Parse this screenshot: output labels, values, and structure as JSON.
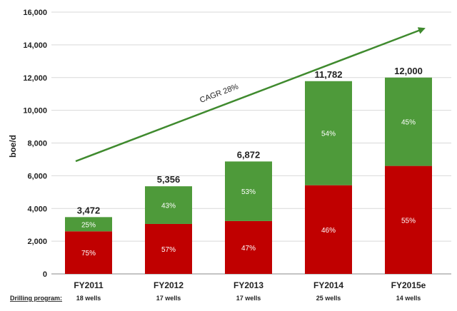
{
  "chart_data": {
    "type": "bar",
    "stacked": true,
    "ylabel": "boe/d",
    "ylim": [
      0,
      16000
    ],
    "yticks": [
      "0",
      "2,000",
      "4,000",
      "6,000",
      "8,000",
      "10,000",
      "12,000",
      "14,000",
      "16,000"
    ],
    "ytick_values": [
      0,
      2000,
      4000,
      6000,
      8000,
      10000,
      12000,
      14000,
      16000
    ],
    "grid": true,
    "categories": [
      "FY2011",
      "FY2012",
      "FY2013",
      "FY2014",
      "FY2015e"
    ],
    "totals": [
      3472,
      5356,
      6872,
      11782,
      12000
    ],
    "total_labels": [
      "3,472",
      "5,356",
      "6,872",
      "11,782",
      "12,000"
    ],
    "series": [
      {
        "color": "#c00000",
        "percents": [
          0.75,
          0.57,
          0.47,
          0.46,
          0.55
        ],
        "labels": [
          "75%",
          "57%",
          "47%",
          "46%",
          "55%"
        ]
      },
      {
        "color": "#4e9a3a",
        "percents": [
          0.25,
          0.43,
          0.53,
          0.54,
          0.45
        ],
        "labels": [
          "25%",
          "43%",
          "53%",
          "54%",
          "45%"
        ]
      }
    ],
    "drilling_program_label": "Drilling program:",
    "drilling_program": [
      "18 wells",
      "17 wells",
      "17 wells",
      "25 wells",
      "14 wells"
    ],
    "annotation": {
      "text": "CAGR 28%",
      "color": "#3f8a2e"
    }
  }
}
